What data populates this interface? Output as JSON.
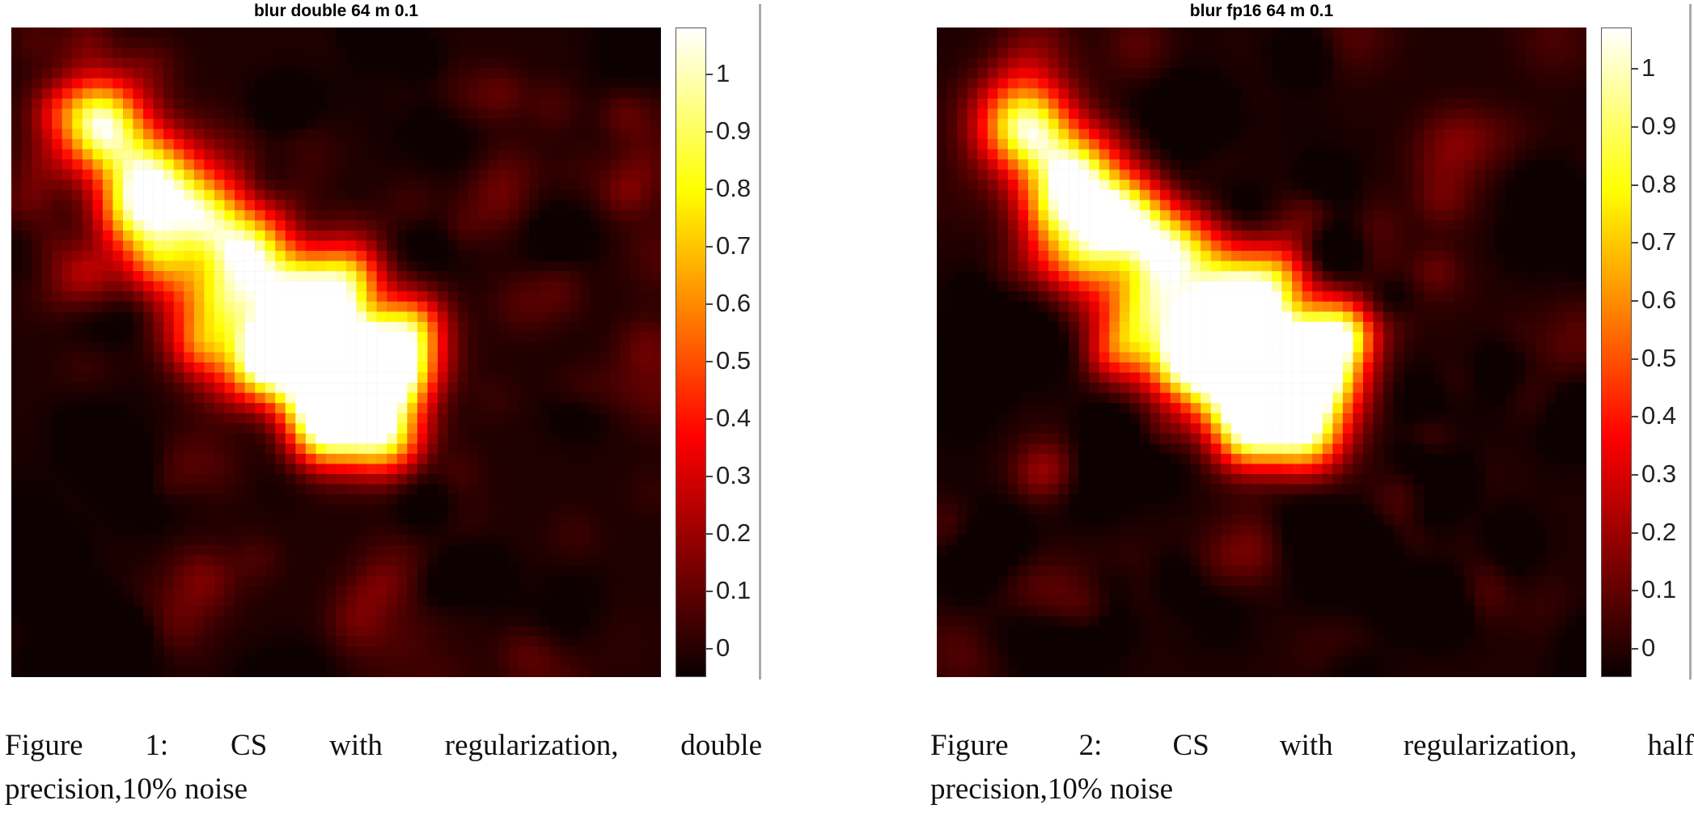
{
  "figures": [
    {
      "plot_title": "blur double 64 m 0.1",
      "colorbar_ticks": [
        "1",
        "0.9",
        "0.8",
        "0.7",
        "0.6",
        "0.5",
        "0.4",
        "0.3",
        "0.2",
        "0.1",
        "0"
      ],
      "colorbar_range": [
        -0.05,
        1.08
      ],
      "caption_line1": "Figure 1: CS with regularization, double",
      "caption_line2": "precision,10% noise"
    },
    {
      "plot_title": "blur fp16 64 m 0.1",
      "colorbar_ticks": [
        "1",
        "0.9",
        "0.8",
        "0.7",
        "0.6",
        "0.5",
        "0.4",
        "0.3",
        "0.2",
        "0.1",
        "0"
      ],
      "colorbar_range": [
        -0.05,
        1.07
      ],
      "caption_line1": "Figure 2: CS with regularization, half",
      "caption_line2": "precision,10% noise"
    }
  ],
  "chart_data": [
    {
      "type": "heatmap",
      "title": "blur double 64 m 0.1",
      "grid_size": [
        64,
        64
      ],
      "colormap": "hot",
      "colorbar_ticks": [
        1,
        0.9,
        0.8,
        0.7,
        0.6,
        0.5,
        0.4,
        0.3,
        0.2,
        0.1,
        0
      ],
      "clim": [
        -0.05,
        1.08
      ]
    },
    {
      "type": "heatmap",
      "title": "blur fp16 64 m 0.1",
      "grid_size": [
        64,
        64
      ],
      "colormap": "hot",
      "colorbar_ticks": [
        1,
        0.9,
        0.8,
        0.7,
        0.6,
        0.5,
        0.4,
        0.3,
        0.2,
        0.1,
        0
      ],
      "clim": [
        -0.05,
        1.07
      ]
    }
  ]
}
